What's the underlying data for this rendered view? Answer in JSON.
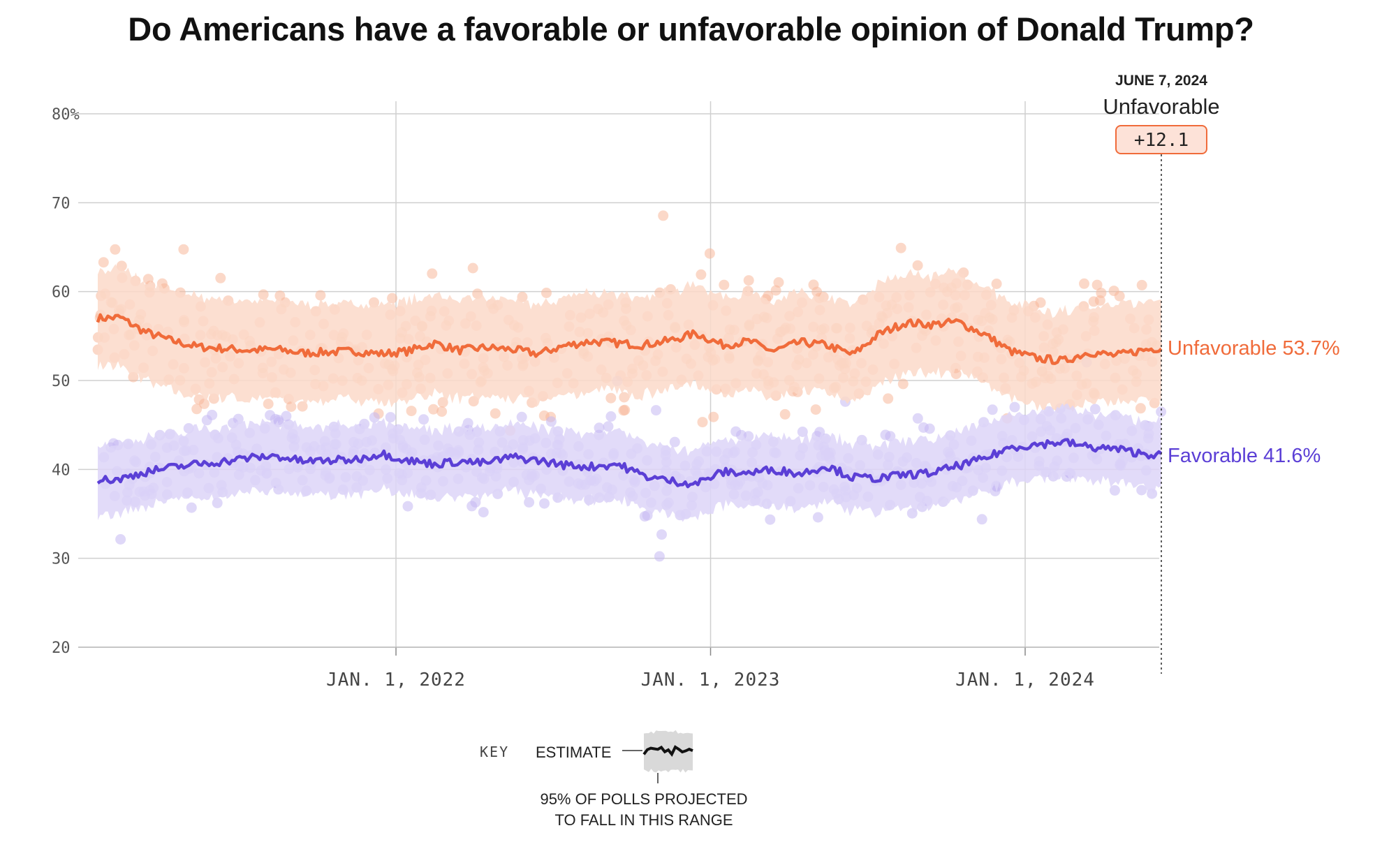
{
  "title": "Do Americans have a favorable or unfavorable opinion of Donald Trump?",
  "chart_data": {
    "type": "line",
    "x_range": [
      "2021-01-20",
      "2024-06-07"
    ],
    "ylim": [
      20,
      80
    ],
    "y_ticks": [
      {
        "value": 80,
        "label": "80%"
      },
      {
        "value": 70,
        "label": "70"
      },
      {
        "value": 60,
        "label": "60"
      },
      {
        "value": 50,
        "label": "50"
      },
      {
        "value": 40,
        "label": "40"
      },
      {
        "value": 30,
        "label": "30"
      },
      {
        "value": 20,
        "label": "20"
      }
    ],
    "x_ticks": [
      {
        "date": "2022-01-01",
        "label": "JAN. 1, 2022"
      },
      {
        "date": "2023-01-01",
        "label": "JAN. 1, 2023"
      },
      {
        "date": "2024-01-01",
        "label": "JAN. 1, 2024"
      }
    ],
    "grid": true,
    "current_date": "June 7, 2024",
    "leader_label": "Unfavorable",
    "margin_label": "+12.1",
    "series": [
      {
        "name": "Unfavorable",
        "color": "#f06b3a",
        "band_color": "#fcd9c9",
        "dot_color": "#f7b89b",
        "end_label": "Unfavorable 53.7%",
        "band_halfwidth": 5.5,
        "points": [
          [
            "2021-01-20",
            57.0
          ],
          [
            "2021-02-15",
            57.1
          ],
          [
            "2021-03-15",
            55.5
          ],
          [
            "2021-04-15",
            54.5
          ],
          [
            "2021-05-15",
            53.8
          ],
          [
            "2021-06-15",
            53.6
          ],
          [
            "2021-07-15",
            53.4
          ],
          [
            "2021-08-15",
            53.5
          ],
          [
            "2021-09-15",
            53.1
          ],
          [
            "2021-10-15",
            53.2
          ],
          [
            "2021-11-15",
            53.3
          ],
          [
            "2021-12-15",
            53.0
          ],
          [
            "2022-01-15",
            53.3
          ],
          [
            "2022-02-15",
            54.2
          ],
          [
            "2022-03-15",
            53.4
          ],
          [
            "2022-04-15",
            53.7
          ],
          [
            "2022-05-15",
            53.5
          ],
          [
            "2022-06-15",
            53.0
          ],
          [
            "2022-07-15",
            53.9
          ],
          [
            "2022-08-15",
            54.4
          ],
          [
            "2022-09-15",
            54.2
          ],
          [
            "2022-10-15",
            54.0
          ],
          [
            "2022-11-15",
            54.5
          ],
          [
            "2022-12-15",
            55.3
          ],
          [
            "2023-01-15",
            54.0
          ],
          [
            "2023-02-15",
            54.4
          ],
          [
            "2023-03-15",
            53.3
          ],
          [
            "2023-04-15",
            54.3
          ],
          [
            "2023-05-15",
            54.0
          ],
          [
            "2023-06-15",
            52.9
          ],
          [
            "2023-07-15",
            55.2
          ],
          [
            "2023-08-15",
            56.5
          ],
          [
            "2023-09-15",
            56.3
          ],
          [
            "2023-10-15",
            56.6
          ],
          [
            "2023-11-15",
            55.2
          ],
          [
            "2023-12-15",
            53.3
          ],
          [
            "2024-01-15",
            52.5
          ],
          [
            "2024-02-15",
            52.2
          ],
          [
            "2024-03-15",
            53.2
          ],
          [
            "2024-04-15",
            52.8
          ],
          [
            "2024-05-15",
            53.4
          ],
          [
            "2024-06-07",
            53.7
          ]
        ]
      },
      {
        "name": "Favorable",
        "color": "#5b3fd6",
        "band_color": "#ddd5f8",
        "dot_color": "#c4b8f2",
        "end_label": "Favorable 41.6%",
        "band_halfwidth": 3.8,
        "points": [
          [
            "2021-01-20",
            38.8
          ],
          [
            "2021-02-15",
            38.9
          ],
          [
            "2021-03-15",
            39.7
          ],
          [
            "2021-04-15",
            40.2
          ],
          [
            "2021-05-15",
            40.6
          ],
          [
            "2021-06-15",
            40.9
          ],
          [
            "2021-07-15",
            41.3
          ],
          [
            "2021-08-15",
            41.5
          ],
          [
            "2021-09-15",
            40.9
          ],
          [
            "2021-10-15",
            41.0
          ],
          [
            "2021-11-15",
            41.1
          ],
          [
            "2021-12-15",
            41.8
          ],
          [
            "2022-01-15",
            41.0
          ],
          [
            "2022-02-15",
            40.6
          ],
          [
            "2022-03-15",
            40.9
          ],
          [
            "2022-04-15",
            40.7
          ],
          [
            "2022-05-15",
            41.4
          ],
          [
            "2022-06-15",
            41.0
          ],
          [
            "2022-07-15",
            40.5
          ],
          [
            "2022-08-15",
            40.3
          ],
          [
            "2022-09-15",
            40.6
          ],
          [
            "2022-10-15",
            39.3
          ],
          [
            "2022-11-15",
            38.7
          ],
          [
            "2022-12-15",
            38.4
          ],
          [
            "2023-01-15",
            39.7
          ],
          [
            "2023-02-15",
            39.6
          ],
          [
            "2023-03-15",
            40.0
          ],
          [
            "2023-04-15",
            39.5
          ],
          [
            "2023-05-15",
            40.4
          ],
          [
            "2023-06-15",
            39.1
          ],
          [
            "2023-07-15",
            39.0
          ],
          [
            "2023-08-15",
            39.4
          ],
          [
            "2023-09-15",
            39.6
          ],
          [
            "2023-10-15",
            40.4
          ],
          [
            "2023-11-15",
            41.2
          ],
          [
            "2023-12-15",
            42.5
          ],
          [
            "2024-01-15",
            42.8
          ],
          [
            "2024-02-15",
            43.1
          ],
          [
            "2024-03-15",
            42.5
          ],
          [
            "2024-04-15",
            42.3
          ],
          [
            "2024-05-15",
            41.8
          ],
          [
            "2024-06-07",
            41.6
          ]
        ]
      }
    ],
    "key": {
      "label": "KEY",
      "estimate_label": "ESTIMATE",
      "range_line1": "95% OF POLLS PROJECTED",
      "range_line2": "TO FALL IN THIS RANGE"
    }
  }
}
